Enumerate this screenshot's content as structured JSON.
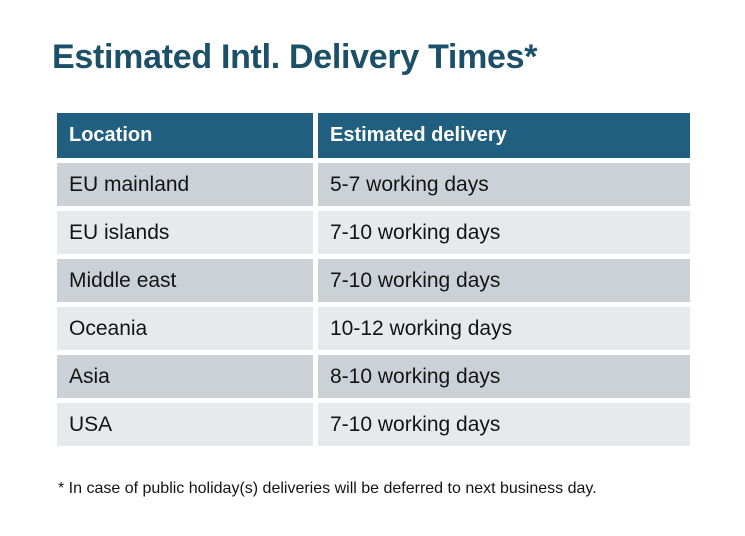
{
  "title": "Estimated Intl. Delivery Times*",
  "table": {
    "headers": [
      "Location",
      "Estimated delivery"
    ],
    "rows": [
      {
        "location": "EU mainland",
        "delivery": "5-7 working days"
      },
      {
        "location": "EU islands",
        "delivery": "7-10 working days"
      },
      {
        "location": "Middle east",
        "delivery": "7-10 working days"
      },
      {
        "location": "Oceania",
        "delivery": "10-12 working days"
      },
      {
        "location": "Asia",
        "delivery": "8-10 working days"
      },
      {
        "location": "USA",
        "delivery": "7-10 working days"
      }
    ]
  },
  "footnote": "* In case of public holiday(s) deliveries will be deferred to next business day.",
  "colors": {
    "title_text": "#1b5068",
    "header_bg": "#215f80",
    "header_text": "#ffffff",
    "row_dark": "#ccd1d8",
    "row_light": "#e7eaed",
    "cell_text": "#141414"
  }
}
